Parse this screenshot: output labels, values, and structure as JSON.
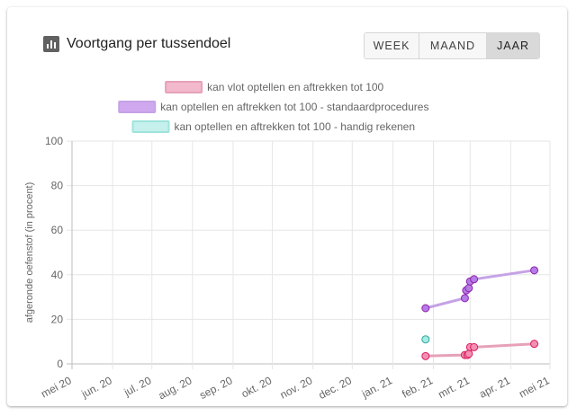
{
  "card": {
    "title": "Voortgang per tussendoel",
    "title_icon": "bar-chart-icon"
  },
  "period_toggle": {
    "options": [
      "WEEK",
      "MAAND",
      "JAAR"
    ],
    "selected": "JAAR"
  },
  "chart_data": {
    "type": "line",
    "ylabel": "afgeronde oefenstof (in procent)",
    "xlabel": "",
    "ylim": [
      0,
      100
    ],
    "yticks": [
      0,
      20,
      40,
      60,
      80,
      100
    ],
    "x_type": "date",
    "xlim": [
      "2020-05-01",
      "2021-05-01"
    ],
    "xticks": [
      {
        "date": "2020-05-01",
        "label": "mei 20"
      },
      {
        "date": "2020-06-01",
        "label": "jun. 20"
      },
      {
        "date": "2020-07-01",
        "label": "jul. 20"
      },
      {
        "date": "2020-08-01",
        "label": "aug. 20"
      },
      {
        "date": "2020-09-01",
        "label": "sep. 20"
      },
      {
        "date": "2020-10-01",
        "label": "okt. 20"
      },
      {
        "date": "2020-11-01",
        "label": "nov. 20"
      },
      {
        "date": "2020-12-01",
        "label": "dec. 20"
      },
      {
        "date": "2021-01-01",
        "label": "jan. 21"
      },
      {
        "date": "2021-02-01",
        "label": "feb. 21"
      },
      {
        "date": "2021-03-01",
        "label": "mrt. 21"
      },
      {
        "date": "2021-04-01",
        "label": "apr. 21"
      },
      {
        "date": "2021-05-01",
        "label": "mei 21"
      }
    ],
    "grid": true,
    "legend_position": "top",
    "series": [
      {
        "name": "kan vlot optellen en aftrekken tot 100",
        "line_color": "#e7a1b9",
        "fill_color": "#f2b9cc",
        "point_fill": "#f48fb1",
        "point_stroke": "#d81b60",
        "points": [
          {
            "x": "2021-01-26",
            "y": 3.5
          },
          {
            "x": "2021-02-25",
            "y": 4
          },
          {
            "x": "2021-02-27",
            "y": 4
          },
          {
            "x": "2021-02-28",
            "y": 4.5
          },
          {
            "x": "2021-03-01",
            "y": 7.5
          },
          {
            "x": "2021-03-04",
            "y": 7.5
          },
          {
            "x": "2021-04-19",
            "y": 9
          }
        ]
      },
      {
        "name": "kan optellen en aftrekken tot 100 - standaardprocedures",
        "line_color": "#c5a2e6",
        "fill_color": "#cfa8ef",
        "point_fill": "#b57be6",
        "point_stroke": "#8e24aa",
        "points": [
          {
            "x": "2021-01-26",
            "y": 25
          },
          {
            "x": "2021-02-25",
            "y": 29.5
          },
          {
            "x": "2021-02-26",
            "y": 33
          },
          {
            "x": "2021-02-28",
            "y": 34
          },
          {
            "x": "2021-03-01",
            "y": 37
          },
          {
            "x": "2021-03-04",
            "y": 38
          },
          {
            "x": "2021-04-19",
            "y": 42
          }
        ]
      },
      {
        "name": "kan optellen en aftrekken tot 100 - handig rekenen",
        "line_color": "#9fe3dc",
        "fill_color": "#c5f0ec",
        "point_fill": "#a8ebe4",
        "point_stroke": "#26a69a",
        "points": [
          {
            "x": "2021-01-26",
            "y": 11
          }
        ]
      }
    ]
  }
}
